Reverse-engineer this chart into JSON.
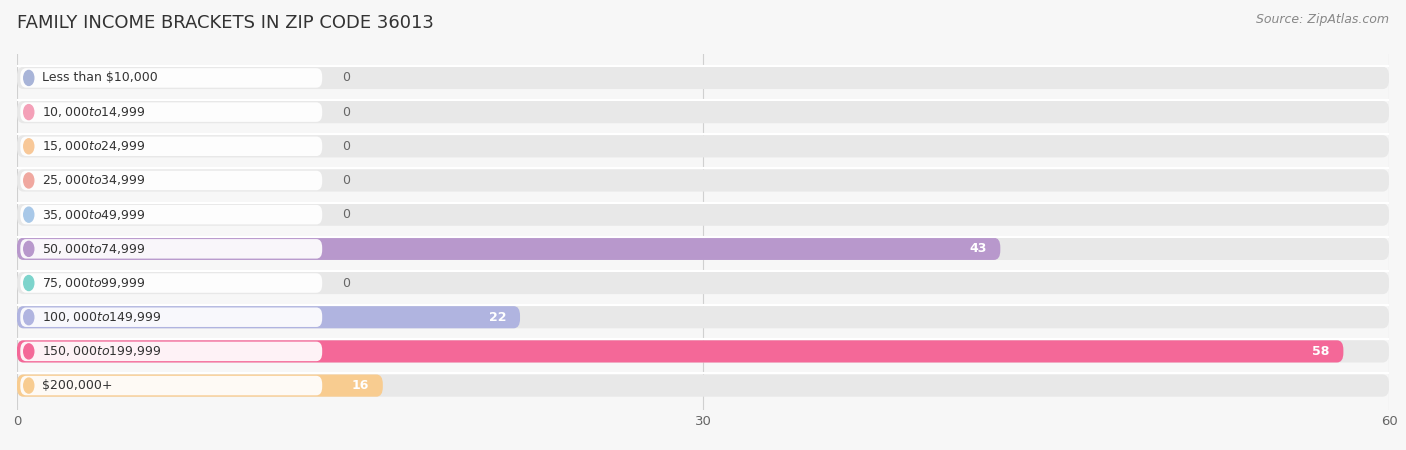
{
  "title": "FAMILY INCOME BRACKETS IN ZIP CODE 36013",
  "source": "Source: ZipAtlas.com",
  "categories": [
    "Less than $10,000",
    "$10,000 to $14,999",
    "$15,000 to $24,999",
    "$25,000 to $34,999",
    "$35,000 to $49,999",
    "$50,000 to $74,999",
    "$75,000 to $99,999",
    "$100,000 to $149,999",
    "$150,000 to $199,999",
    "$200,000+"
  ],
  "values": [
    0,
    0,
    0,
    0,
    0,
    43,
    0,
    22,
    58,
    16
  ],
  "bar_colors": [
    "#a8b4d8",
    "#f4a0b8",
    "#f8c898",
    "#f0a8a0",
    "#a8c8e8",
    "#b898cc",
    "#7dd4cc",
    "#b0b4e0",
    "#f46898",
    "#f8cc90"
  ],
  "background_color": "#f7f7f7",
  "bar_bg_color": "#e8e8e8",
  "label_bg_color": "#ffffff",
  "xlim": [
    0,
    60
  ],
  "xticks": [
    0,
    30,
    60
  ],
  "title_fontsize": 13,
  "label_fontsize": 9,
  "value_fontsize": 9,
  "source_fontsize": 9
}
